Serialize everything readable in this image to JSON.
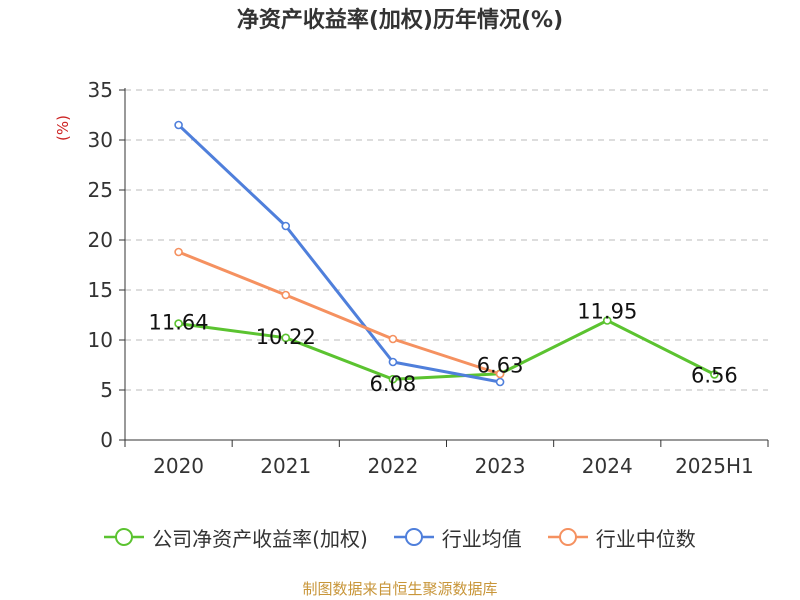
{
  "chart_data": {
    "type": "line",
    "title": "净资产收益率(加权)历年情况(%)",
    "ylabel": "(%)",
    "xlabel": "",
    "categories": [
      "2020",
      "2021",
      "2022",
      "2023",
      "2024",
      "2025H1"
    ],
    "ylim": [
      0,
      35
    ],
    "yticks": [
      0,
      5,
      10,
      15,
      20,
      25,
      30,
      35
    ],
    "grid": true,
    "legend_position": "bottom",
    "series": [
      {
        "name": "公司净资产收益率(加权)",
        "color": "#5bc330",
        "values": [
          11.64,
          10.22,
          6.08,
          6.63,
          11.95,
          6.56
        ],
        "labels": [
          "11.64",
          "10.22",
          "6.08",
          "6.63",
          "11.95",
          "6.56"
        ]
      },
      {
        "name": "行业均值",
        "color": "#4f7fdb",
        "values": [
          31.5,
          21.4,
          7.8,
          5.8,
          null,
          null
        ]
      },
      {
        "name": "行业中位数",
        "color": "#f59160",
        "values": [
          18.8,
          14.5,
          10.1,
          6.6,
          null,
          null
        ]
      }
    ]
  },
  "source": "制图数据来自恒生聚源数据库"
}
